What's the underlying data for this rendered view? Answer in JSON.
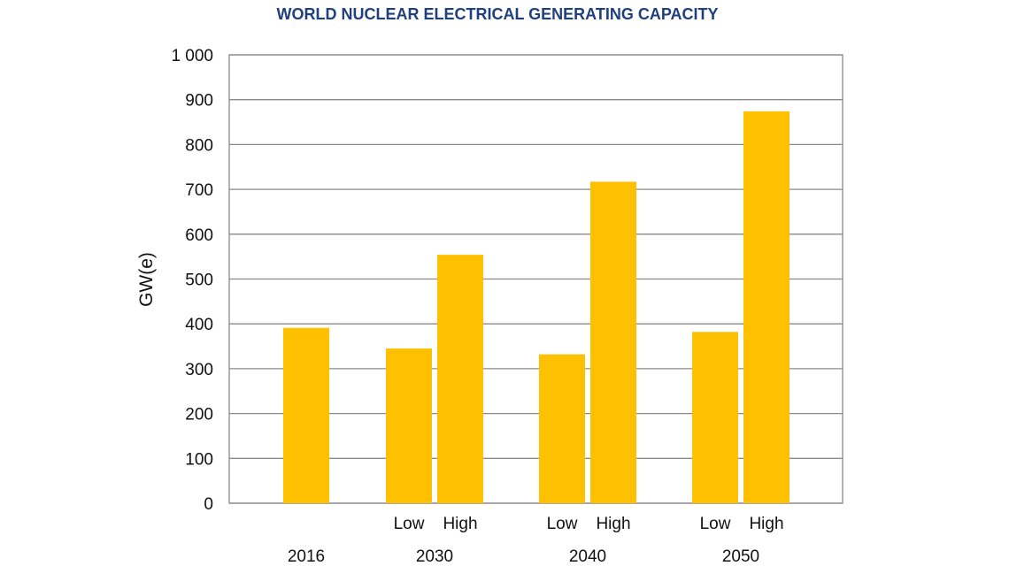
{
  "chart_data": {
    "type": "bar",
    "title": "WORLD NUCLEAR ELECTRICAL GENERATING CAPACITY",
    "xlabel": "",
    "ylabel": "GW(e)",
    "ylim": [
      0,
      1000
    ],
    "yticks": [
      0,
      100,
      200,
      300,
      400,
      500,
      600,
      700,
      800,
      900,
      1000
    ],
    "ytick_labels": [
      "0",
      "100",
      "200",
      "300",
      "400",
      "500",
      "600",
      "700",
      "800",
      "900",
      "1 000"
    ],
    "grid": true,
    "bar_color": "#FFC000",
    "groups": [
      {
        "label": "2016",
        "bars": [
          {
            "sub": "",
            "value": 391
          }
        ]
      },
      {
        "label": "2030",
        "bars": [
          {
            "sub": "Low",
            "value": 345
          },
          {
            "sub": "High",
            "value": 554
          }
        ]
      },
      {
        "label": "2040",
        "bars": [
          {
            "sub": "Low",
            "value": 332
          },
          {
            "sub": "High",
            "value": 717
          }
        ]
      },
      {
        "label": "2050",
        "bars": [
          {
            "sub": "Low",
            "value": 382
          },
          {
            "sub": "High",
            "value": 874
          }
        ]
      }
    ]
  }
}
